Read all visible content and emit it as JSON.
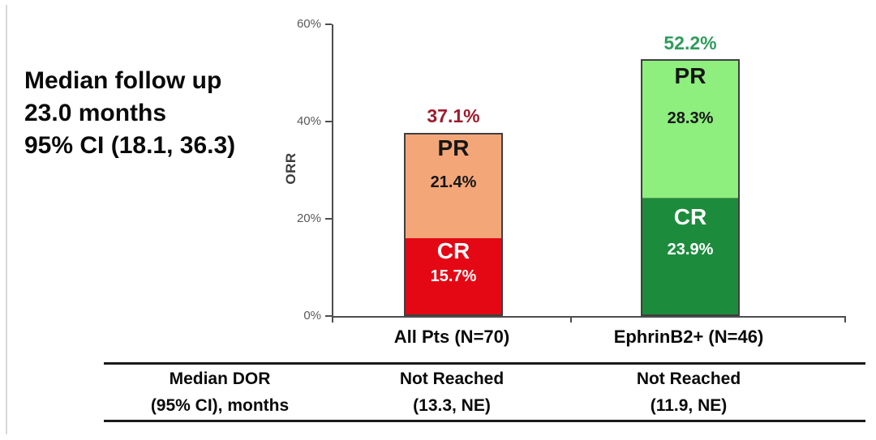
{
  "annotation": {
    "line1": "Median follow up",
    "line2": "23.0 months",
    "line3": "95% CI (18.1, 36.3)"
  },
  "chart_data": {
    "type": "bar",
    "stacked": true,
    "ylabel": "ORR",
    "ylim": [
      0,
      60
    ],
    "yticks": [
      0,
      20,
      40,
      60
    ],
    "ytick_labels": [
      "0%",
      "20%",
      "40%",
      "60%"
    ],
    "grid": false,
    "categories": [
      "All Pts (N=70)",
      "EphrinB2+ (N=46)"
    ],
    "series": [
      {
        "name": "CR",
        "values": [
          15.7,
          23.9
        ],
        "labels": [
          "15.7%",
          "23.9%"
        ],
        "colors": [
          "#E40814",
          "#1C8C3C"
        ],
        "text_color": "#FFFFFF"
      },
      {
        "name": "PR",
        "values": [
          21.4,
          28.3
        ],
        "labels": [
          "21.4%",
          "28.3%"
        ],
        "colors": [
          "#F3A678",
          "#8EEE7E"
        ],
        "text_color": "#161616"
      }
    ],
    "totals": [
      {
        "label": "37.1%",
        "color": "#9E1B2D"
      },
      {
        "label": "52.2%",
        "color": "#2E9C5A"
      }
    ],
    "axis_color": "#4D4D4D",
    "tick_label_color": "#595959"
  },
  "table": {
    "header": {
      "line1": "Median DOR",
      "line2": "(95% CI), months"
    },
    "cells": [
      {
        "line1": "Not Reached",
        "line2": "(13.3, NE)"
      },
      {
        "line1": "Not Reached",
        "line2": "(11.9, NE)"
      }
    ]
  }
}
